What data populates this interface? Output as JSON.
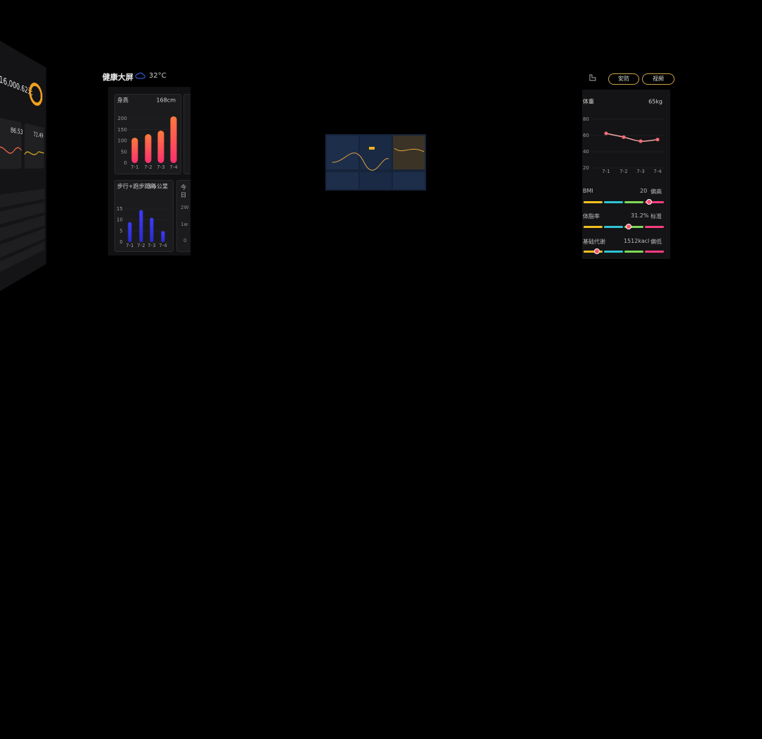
{
  "left_panel": {
    "amount": "16,000.62元",
    "stat_1": "86.53",
    "stat_2": "72.49"
  },
  "header": {
    "title": "健康大屏",
    "temperature": "32°C"
  },
  "nav": [
    "安防",
    "视频"
  ],
  "chart_data": [
    {
      "type": "bar",
      "title": "身高",
      "subtitle": "168cm",
      "categories": [
        "7-1",
        "7-2",
        "7-3",
        "7-4"
      ],
      "values": [
        114,
        130,
        146,
        210
      ],
      "ylim": [
        0,
        200
      ],
      "yticks": [
        0,
        50,
        100,
        150,
        200
      ],
      "color": "#ff7a3d"
    },
    {
      "type": "bar",
      "title": "步行+跑步距离",
      "subtitle": "3.5公里",
      "categories": [
        "7-1",
        "7-2",
        "7-3",
        "7-4"
      ],
      "values": [
        9,
        14.5,
        11,
        5
      ],
      "ylim": [
        0,
        15
      ],
      "yticks": [
        0,
        5,
        10,
        15
      ],
      "color": "#3d3dff"
    },
    {
      "type": "line",
      "title": "体重",
      "subtitle": "65kg",
      "categories": [
        "7-1",
        "7-2",
        "7-3",
        "7-4"
      ],
      "values": [
        62.6,
        58,
        53,
        55
      ],
      "ylim": [
        20,
        80
      ],
      "yticks": [
        20,
        40,
        60,
        80
      ],
      "color": "#f4a7a0"
    }
  ],
  "partial_card": {
    "title": "今日",
    "labels": [
      "2W",
      "1w",
      "0"
    ]
  },
  "metrics": [
    {
      "name": "BMI",
      "value": "20",
      "status": "偏高"
    },
    {
      "name": "体脂率",
      "value": "31.2%",
      "status": "标准"
    },
    {
      "name": "基础代谢",
      "value": "1512kacl",
      "status": "偏低"
    }
  ]
}
